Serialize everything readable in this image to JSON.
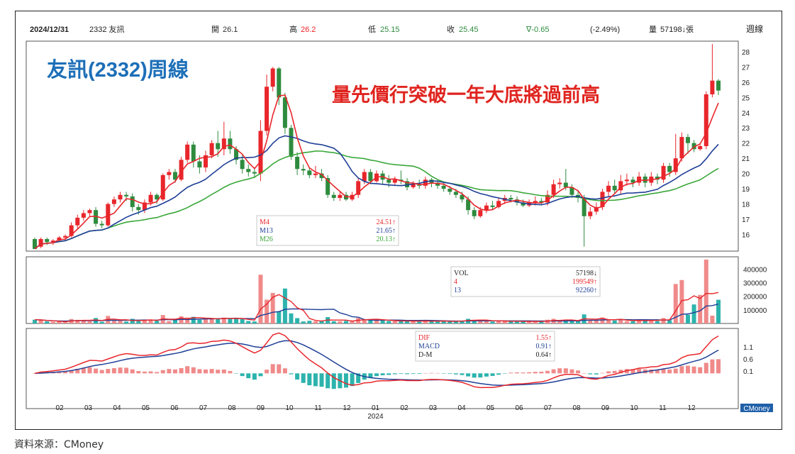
{
  "header": {
    "date": "2024/12/31",
    "ticker": "2332 友訊",
    "open_label": "開",
    "open": "26.1",
    "high_label": "高",
    "high": "26.2",
    "low_label": "低",
    "low": "25.15",
    "close_label": "收",
    "close": "25.45",
    "change": "∇-0.65",
    "change_pct": "(-2.49%)",
    "vol_label": "量",
    "vol": "57198↓張",
    "period": "週線"
  },
  "titles": {
    "main": "友訊(2332)周線",
    "subtitle": "量先價行突破一年大底將過前高"
  },
  "source": "資料來源：CMoney",
  "brand": "CMoney",
  "colors": {
    "up": "#e8262b",
    "down": "#2e8b3e",
    "ma4": "#e8262b",
    "ma13": "#1f3f97",
    "ma26": "#3aa83a",
    "vol_up": "#f08a8a",
    "vol_down": "#2db3ad",
    "title_blue": "#1d6fb8",
    "title_red": "#e0241f"
  },
  "legends": {
    "price": [
      {
        "label": "M4",
        "value": "24.51↑",
        "color": "#e8262b"
      },
      {
        "label": "M13",
        "value": "21.65↑",
        "color": "#1f3f97"
      },
      {
        "label": "M26",
        "value": "20.13↑",
        "color": "#3aa83a"
      }
    ],
    "volume": [
      {
        "label": "VOL",
        "value": "57198↓",
        "color": "#222222"
      },
      {
        "label": "4",
        "value": "199549↑",
        "color": "#e8262b"
      },
      {
        "label": "13",
        "value": "92260↑",
        "color": "#1f3f97"
      }
    ],
    "macd": [
      {
        "label": "DIF",
        "value": "1.55↑",
        "color": "#e8262b"
      },
      {
        "label": "MACD",
        "value": "0.91↑",
        "color": "#1f3f97"
      },
      {
        "label": "D-M",
        "value": "0.64↑",
        "color": "#222222"
      }
    ]
  },
  "chart_data": {
    "type": "candlestick",
    "x_months": [
      "02",
      "03",
      "04",
      "05",
      "06",
      "07",
      "08",
      "09",
      "10",
      "11",
      "12",
      "01",
      "02",
      "03",
      "04",
      "05",
      "06",
      "07",
      "08",
      "09",
      "10",
      "11",
      "12"
    ],
    "x_year_label": "2024",
    "price_axis": {
      "ticks": [
        "16",
        "17",
        "18",
        "19",
        "20",
        "21",
        "22",
        "23",
        "24",
        "25",
        "26",
        "27",
        "28"
      ],
      "ylim": [
        15,
        28.6
      ]
    },
    "volume_axis": {
      "ticks": [
        "100000",
        "200000",
        "300000",
        "400000"
      ],
      "ylim": [
        0,
        480000
      ]
    },
    "macd_axis": {
      "ticks": [
        "0.1",
        "0.6",
        "1.1"
      ],
      "ylim": [
        -1.4,
        1.8
      ]
    },
    "weekly_ohlc": [
      [
        15.7,
        15.05,
        15.8,
        15.2
      ],
      [
        15.2,
        15.7,
        15.8,
        15.1
      ],
      [
        15.7,
        15.5,
        15.8,
        15.3
      ],
      [
        15.5,
        15.6,
        15.7,
        15.3
      ],
      [
        15.6,
        15.8,
        15.9,
        15.5
      ],
      [
        15.8,
        15.9,
        16.0,
        15.6
      ],
      [
        15.9,
        16.6,
        16.8,
        15.8
      ],
      [
        16.6,
        17.1,
        17.3,
        16.4
      ],
      [
        17.1,
        17.4,
        17.6,
        16.9
      ],
      [
        17.4,
        17.6,
        17.7,
        17.2
      ],
      [
        17.6,
        16.7,
        17.8,
        16.5
      ],
      [
        16.7,
        16.6,
        16.9,
        16.4
      ],
      [
        16.6,
        18.0,
        18.1,
        16.5
      ],
      [
        18.0,
        18.3,
        18.5,
        17.8
      ],
      [
        18.3,
        18.6,
        18.8,
        18.1
      ],
      [
        18.6,
        18.5,
        18.8,
        18.2
      ],
      [
        18.5,
        17.8,
        18.7,
        17.5
      ],
      [
        17.8,
        17.6,
        18.0,
        17.3
      ],
      [
        17.6,
        18.1,
        18.3,
        17.4
      ],
      [
        18.1,
        18.6,
        18.8,
        17.9
      ],
      [
        18.6,
        18.3,
        18.7,
        18.0
      ],
      [
        18.3,
        19.9,
        20.0,
        18.2
      ],
      [
        19.9,
        20.1,
        20.3,
        19.6
      ],
      [
        20.1,
        19.6,
        20.3,
        19.4
      ],
      [
        19.6,
        20.9,
        21.1,
        19.5
      ],
      [
        20.9,
        21.9,
        22.1,
        20.7
      ],
      [
        21.9,
        20.8,
        22.1,
        20.4
      ],
      [
        20.8,
        20.4,
        21.2,
        20.0
      ],
      [
        20.4,
        21.2,
        21.5,
        20.1
      ],
      [
        21.2,
        22.0,
        22.2,
        21.0
      ],
      [
        22.0,
        21.6,
        22.8,
        21.1
      ],
      [
        21.6,
        22.3,
        23.4,
        21.2
      ],
      [
        22.3,
        21.6,
        22.8,
        21.3
      ],
      [
        21.6,
        20.9,
        21.8,
        20.6
      ],
      [
        20.9,
        20.3,
        21.2,
        20.0
      ],
      [
        20.3,
        20.1,
        20.6,
        19.8
      ],
      [
        20.1,
        20.0,
        20.4,
        19.7
      ],
      [
        20.0,
        22.8,
        23.5,
        19.5
      ],
      [
        22.8,
        25.7,
        26.5,
        22.5
      ],
      [
        25.7,
        26.9,
        27.0,
        25.4
      ],
      [
        26.9,
        25.0,
        27.0,
        24.5
      ],
      [
        25.0,
        23.0,
        25.3,
        22.6
      ],
      [
        23.0,
        21.1,
        23.2,
        20.9
      ],
      [
        21.1,
        20.3,
        21.4,
        19.9
      ],
      [
        20.3,
        20.2,
        20.6,
        19.9
      ],
      [
        20.2,
        19.9,
        20.4,
        19.7
      ],
      [
        19.9,
        20.0,
        20.5,
        19.7
      ],
      [
        20.0,
        19.7,
        20.3,
        19.5
      ],
      [
        19.7,
        18.6,
        19.9,
        18.4
      ],
      [
        18.6,
        18.4,
        18.8,
        18.2
      ],
      [
        18.4,
        18.6,
        18.8,
        18.2
      ],
      [
        18.6,
        18.3,
        18.8,
        18.2
      ],
      [
        18.3,
        18.6,
        18.8,
        18.2
      ],
      [
        18.6,
        19.5,
        19.7,
        18.4
      ],
      [
        19.5,
        20.1,
        20.3,
        19.3
      ],
      [
        20.1,
        19.5,
        20.3,
        19.3
      ],
      [
        19.5,
        20.0,
        20.2,
        19.4
      ],
      [
        20.0,
        19.6,
        20.2,
        19.3
      ],
      [
        19.6,
        19.4,
        19.9,
        19.1
      ],
      [
        19.4,
        19.6,
        19.8,
        19.2
      ],
      [
        19.6,
        19.5,
        20.2,
        19.3
      ],
      [
        19.5,
        19.1,
        19.7,
        18.9
      ],
      [
        19.1,
        19.3,
        19.5,
        19.0
      ],
      [
        19.3,
        19.2,
        19.6,
        19.0
      ],
      [
        19.2,
        19.6,
        19.8,
        19.0
      ],
      [
        19.6,
        19.4,
        19.7,
        19.1
      ],
      [
        19.4,
        19.2,
        19.6,
        19.0
      ],
      [
        19.2,
        19.0,
        19.4,
        18.8
      ],
      [
        19.0,
        18.8,
        19.2,
        18.6
      ],
      [
        18.8,
        18.6,
        19.0,
        18.4
      ],
      [
        18.6,
        18.3,
        18.8,
        18.1
      ],
      [
        18.3,
        17.6,
        18.5,
        17.3
      ],
      [
        17.6,
        17.2,
        17.8,
        17.0
      ],
      [
        17.2,
        17.6,
        17.8,
        17.1
      ],
      [
        17.6,
        17.9,
        18.1,
        17.4
      ],
      [
        17.9,
        17.8,
        18.2,
        17.6
      ],
      [
        17.8,
        18.2,
        18.4,
        17.7
      ],
      [
        18.2,
        18.4,
        18.6,
        18.0
      ],
      [
        18.4,
        18.3,
        18.6,
        18.1
      ],
      [
        18.3,
        18.1,
        18.5,
        17.9
      ],
      [
        18.1,
        17.9,
        18.3,
        17.8
      ],
      [
        17.9,
        18.1,
        18.3,
        17.8
      ],
      [
        18.1,
        18.2,
        18.5,
        17.9
      ],
      [
        18.2,
        18.1,
        18.4,
        17.9
      ],
      [
        18.1,
        18.6,
        18.9,
        17.9
      ],
      [
        18.6,
        19.3,
        19.6,
        18.4
      ],
      [
        19.3,
        19.4,
        19.7,
        19.0
      ],
      [
        19.4,
        19.1,
        20.3,
        18.9
      ],
      [
        19.1,
        18.6,
        19.3,
        18.4
      ],
      [
        18.6,
        18.4,
        18.9,
        18.1
      ],
      [
        18.4,
        17.2,
        18.6,
        15.2
      ],
      [
        17.2,
        17.5,
        17.8,
        17.0
      ],
      [
        17.5,
        17.8,
        18.1,
        17.3
      ],
      [
        17.8,
        18.8,
        19.0,
        17.6
      ],
      [
        18.8,
        19.2,
        19.5,
        18.5
      ],
      [
        19.2,
        18.9,
        19.6,
        18.7
      ],
      [
        18.9,
        19.5,
        19.9,
        18.6
      ],
      [
        19.5,
        19.6,
        20.0,
        19.2
      ],
      [
        19.6,
        19.4,
        19.8,
        19.1
      ],
      [
        19.4,
        19.8,
        20.1,
        19.2
      ],
      [
        19.8,
        19.4,
        20.0,
        19.1
      ],
      [
        19.4,
        19.8,
        20.1,
        19.2
      ],
      [
        19.8,
        19.6,
        20.0,
        19.3
      ],
      [
        19.6,
        20.5,
        20.7,
        19.4
      ],
      [
        20.5,
        20.1,
        20.7,
        19.8
      ],
      [
        20.1,
        21.0,
        22.6,
        19.9
      ],
      [
        21.0,
        22.4,
        22.7,
        20.8
      ],
      [
        22.4,
        22.0,
        22.6,
        21.3
      ],
      [
        22.0,
        21.6,
        22.2,
        21.4
      ],
      [
        21.6,
        21.8,
        22.0,
        21.5
      ],
      [
        21.8,
        25.2,
        25.4,
        21.6
      ],
      [
        25.2,
        26.1,
        28.5,
        25.0
      ],
      [
        26.1,
        25.45,
        26.2,
        25.15
      ]
    ],
    "ma_last": {
      "M4": 24.51,
      "M13": 21.65,
      "M26": 20.13
    },
    "volume_last": {
      "VOL": 57198,
      "MA4": 199549,
      "MA13": 92260
    },
    "macd_last": {
      "DIF": 1.55,
      "MACD": 0.91,
      "D-M": 0.64
    }
  }
}
